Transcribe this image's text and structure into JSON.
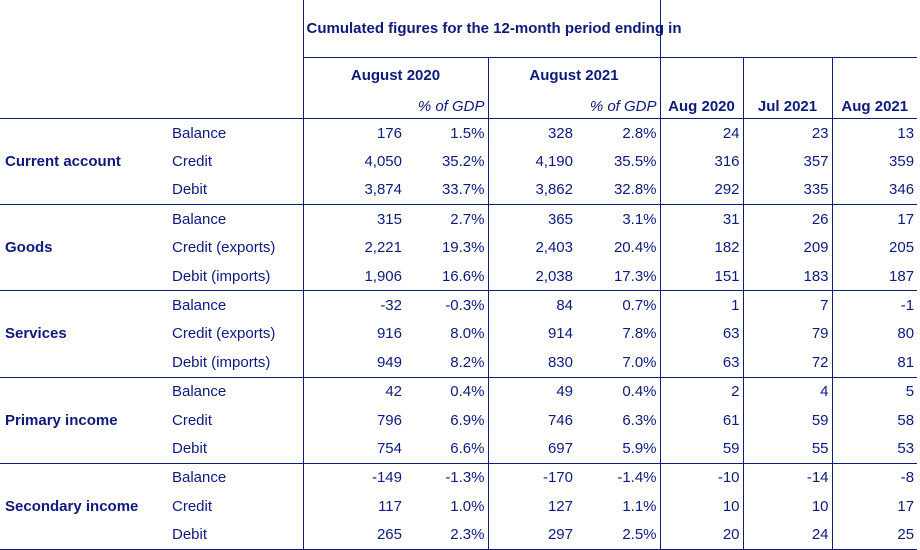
{
  "header": {
    "group_title": "Cumulated figures for the 12-month period ending in",
    "period_1": "August 2020",
    "period_2": "August 2021",
    "pct_gdp_label": "% of GDP",
    "months": [
      "Aug 2020",
      "Jul 2021",
      "Aug 2021"
    ]
  },
  "sections": [
    {
      "name": "Current account",
      "rows": [
        {
          "label": "Balance",
          "values": [
            "176",
            "1.5%",
            "328",
            "2.8%",
            "24",
            "23",
            "13"
          ]
        },
        {
          "label": "Credit",
          "values": [
            "4,050",
            "35.2%",
            "4,190",
            "35.5%",
            "316",
            "357",
            "359"
          ]
        },
        {
          "label": "Debit",
          "values": [
            "3,874",
            "33.7%",
            "3,862",
            "32.8%",
            "292",
            "335",
            "346"
          ]
        }
      ]
    },
    {
      "name": "Goods",
      "rows": [
        {
          "label": "Balance",
          "values": [
            "315",
            "2.7%",
            "365",
            "3.1%",
            "31",
            "26",
            "17"
          ]
        },
        {
          "label": "Credit (exports)",
          "values": [
            "2,221",
            "19.3%",
            "2,403",
            "20.4%",
            "182",
            "209",
            "205"
          ]
        },
        {
          "label": "Debit (imports)",
          "values": [
            "1,906",
            "16.6%",
            "2,038",
            "17.3%",
            "151",
            "183",
            "187"
          ]
        }
      ]
    },
    {
      "name": "Services",
      "rows": [
        {
          "label": "Balance",
          "values": [
            "-32",
            "-0.3%",
            "84",
            "0.7%",
            "1",
            "7",
            "-1"
          ]
        },
        {
          "label": "Credit (exports)",
          "values": [
            "916",
            "8.0%",
            "914",
            "7.8%",
            "63",
            "79",
            "80"
          ]
        },
        {
          "label": "Debit (imports)",
          "values": [
            "949",
            "8.2%",
            "830",
            "7.0%",
            "63",
            "72",
            "81"
          ]
        }
      ]
    },
    {
      "name": "Primary income",
      "rows": [
        {
          "label": "Balance",
          "values": [
            "42",
            "0.4%",
            "49",
            "0.4%",
            "2",
            "4",
            "5"
          ]
        },
        {
          "label": "Credit",
          "values": [
            "796",
            "6.9%",
            "746",
            "6.3%",
            "61",
            "59",
            "58"
          ]
        },
        {
          "label": "Debit",
          "values": [
            "754",
            "6.6%",
            "697",
            "5.9%",
            "59",
            "55",
            "53"
          ]
        }
      ]
    },
    {
      "name": "Secondary income",
      "rows": [
        {
          "label": "Balance",
          "values": [
            "-149",
            "-1.3%",
            "-170",
            "-1.4%",
            "-10",
            "-14",
            "-8"
          ]
        },
        {
          "label": "Credit",
          "values": [
            "117",
            "1.0%",
            "127",
            "1.1%",
            "10",
            "10",
            "17"
          ]
        },
        {
          "label": "Debit",
          "values": [
            "265",
            "2.3%",
            "297",
            "2.5%",
            "20",
            "24",
            "25"
          ]
        }
      ]
    }
  ]
}
